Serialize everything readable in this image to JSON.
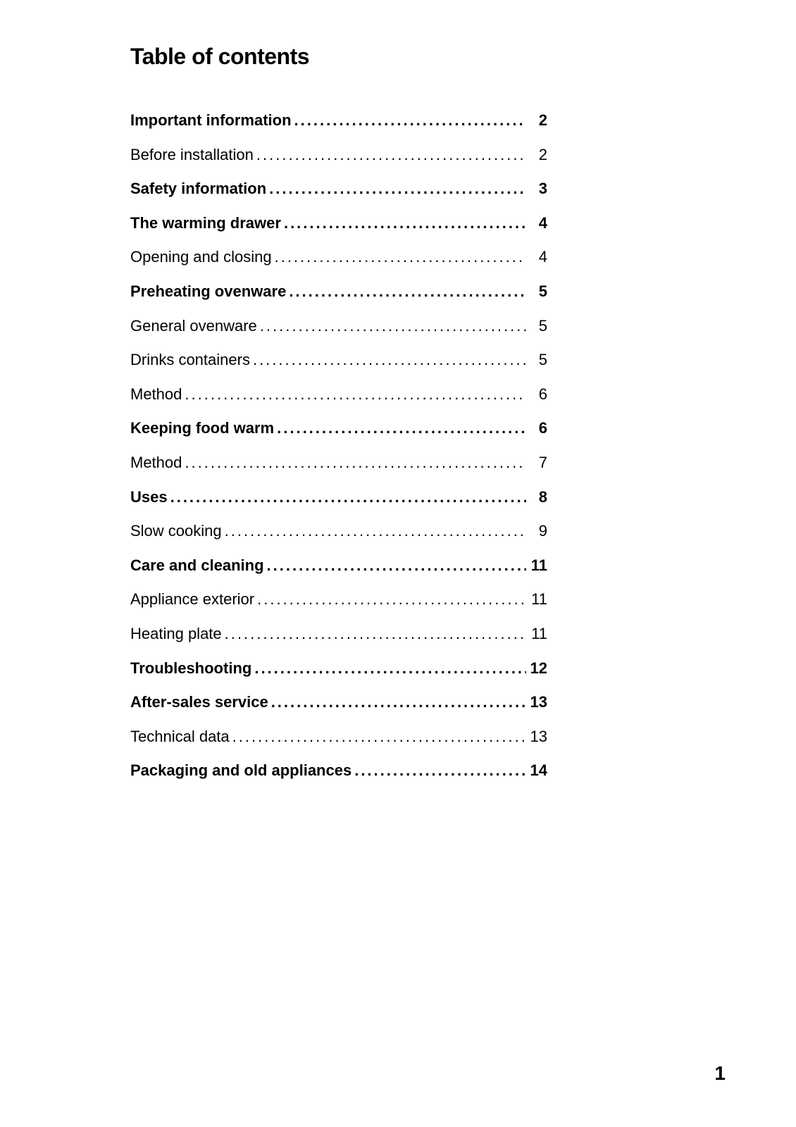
{
  "title": "Table of contents",
  "page_number": "1",
  "entries": [
    {
      "label": "Important information",
      "page": "2",
      "bold": true
    },
    {
      "label": "Before installation",
      "page": "2",
      "bold": false
    },
    {
      "label": "Safety information",
      "page": "3",
      "bold": true
    },
    {
      "label": "The warming drawer",
      "page": "4",
      "bold": true
    },
    {
      "label": "Opening and closing",
      "page": "4",
      "bold": false
    },
    {
      "label": "Preheating ovenware",
      "page": "5",
      "bold": true
    },
    {
      "label": "General ovenware",
      "page": "5",
      "bold": false
    },
    {
      "label": "Drinks containers",
      "page": "5",
      "bold": false
    },
    {
      "label": "Method",
      "page": "6",
      "bold": false
    },
    {
      "label": "Keeping food warm",
      "page": "6",
      "bold": true
    },
    {
      "label": "Method",
      "page": "7",
      "bold": false
    },
    {
      "label": "Uses",
      "page": "8",
      "bold": true
    },
    {
      "label": "Slow cooking",
      "page": "9",
      "bold": false
    },
    {
      "label": "Care and cleaning",
      "page": "11",
      "bold": true
    },
    {
      "label": "Appliance exterior",
      "page": "11",
      "bold": false
    },
    {
      "label": "Heating plate",
      "page": "11",
      "bold": false
    },
    {
      "label": "Troubleshooting",
      "page": "12",
      "bold": true
    },
    {
      "label": "After-sales service",
      "page": "13",
      "bold": true
    },
    {
      "label": "Technical data",
      "page": "13",
      "bold": false
    },
    {
      "label": "Packaging and old appliances",
      "page": "14",
      "bold": true
    }
  ],
  "styling": {
    "background_color": "#ffffff",
    "text_color": "#000000",
    "title_fontsize": 32,
    "entry_fontsize": 22,
    "page_number_fontsize": 28,
    "dot_spacing": 3,
    "font_family": "Arial, Helvetica, sans-serif"
  }
}
